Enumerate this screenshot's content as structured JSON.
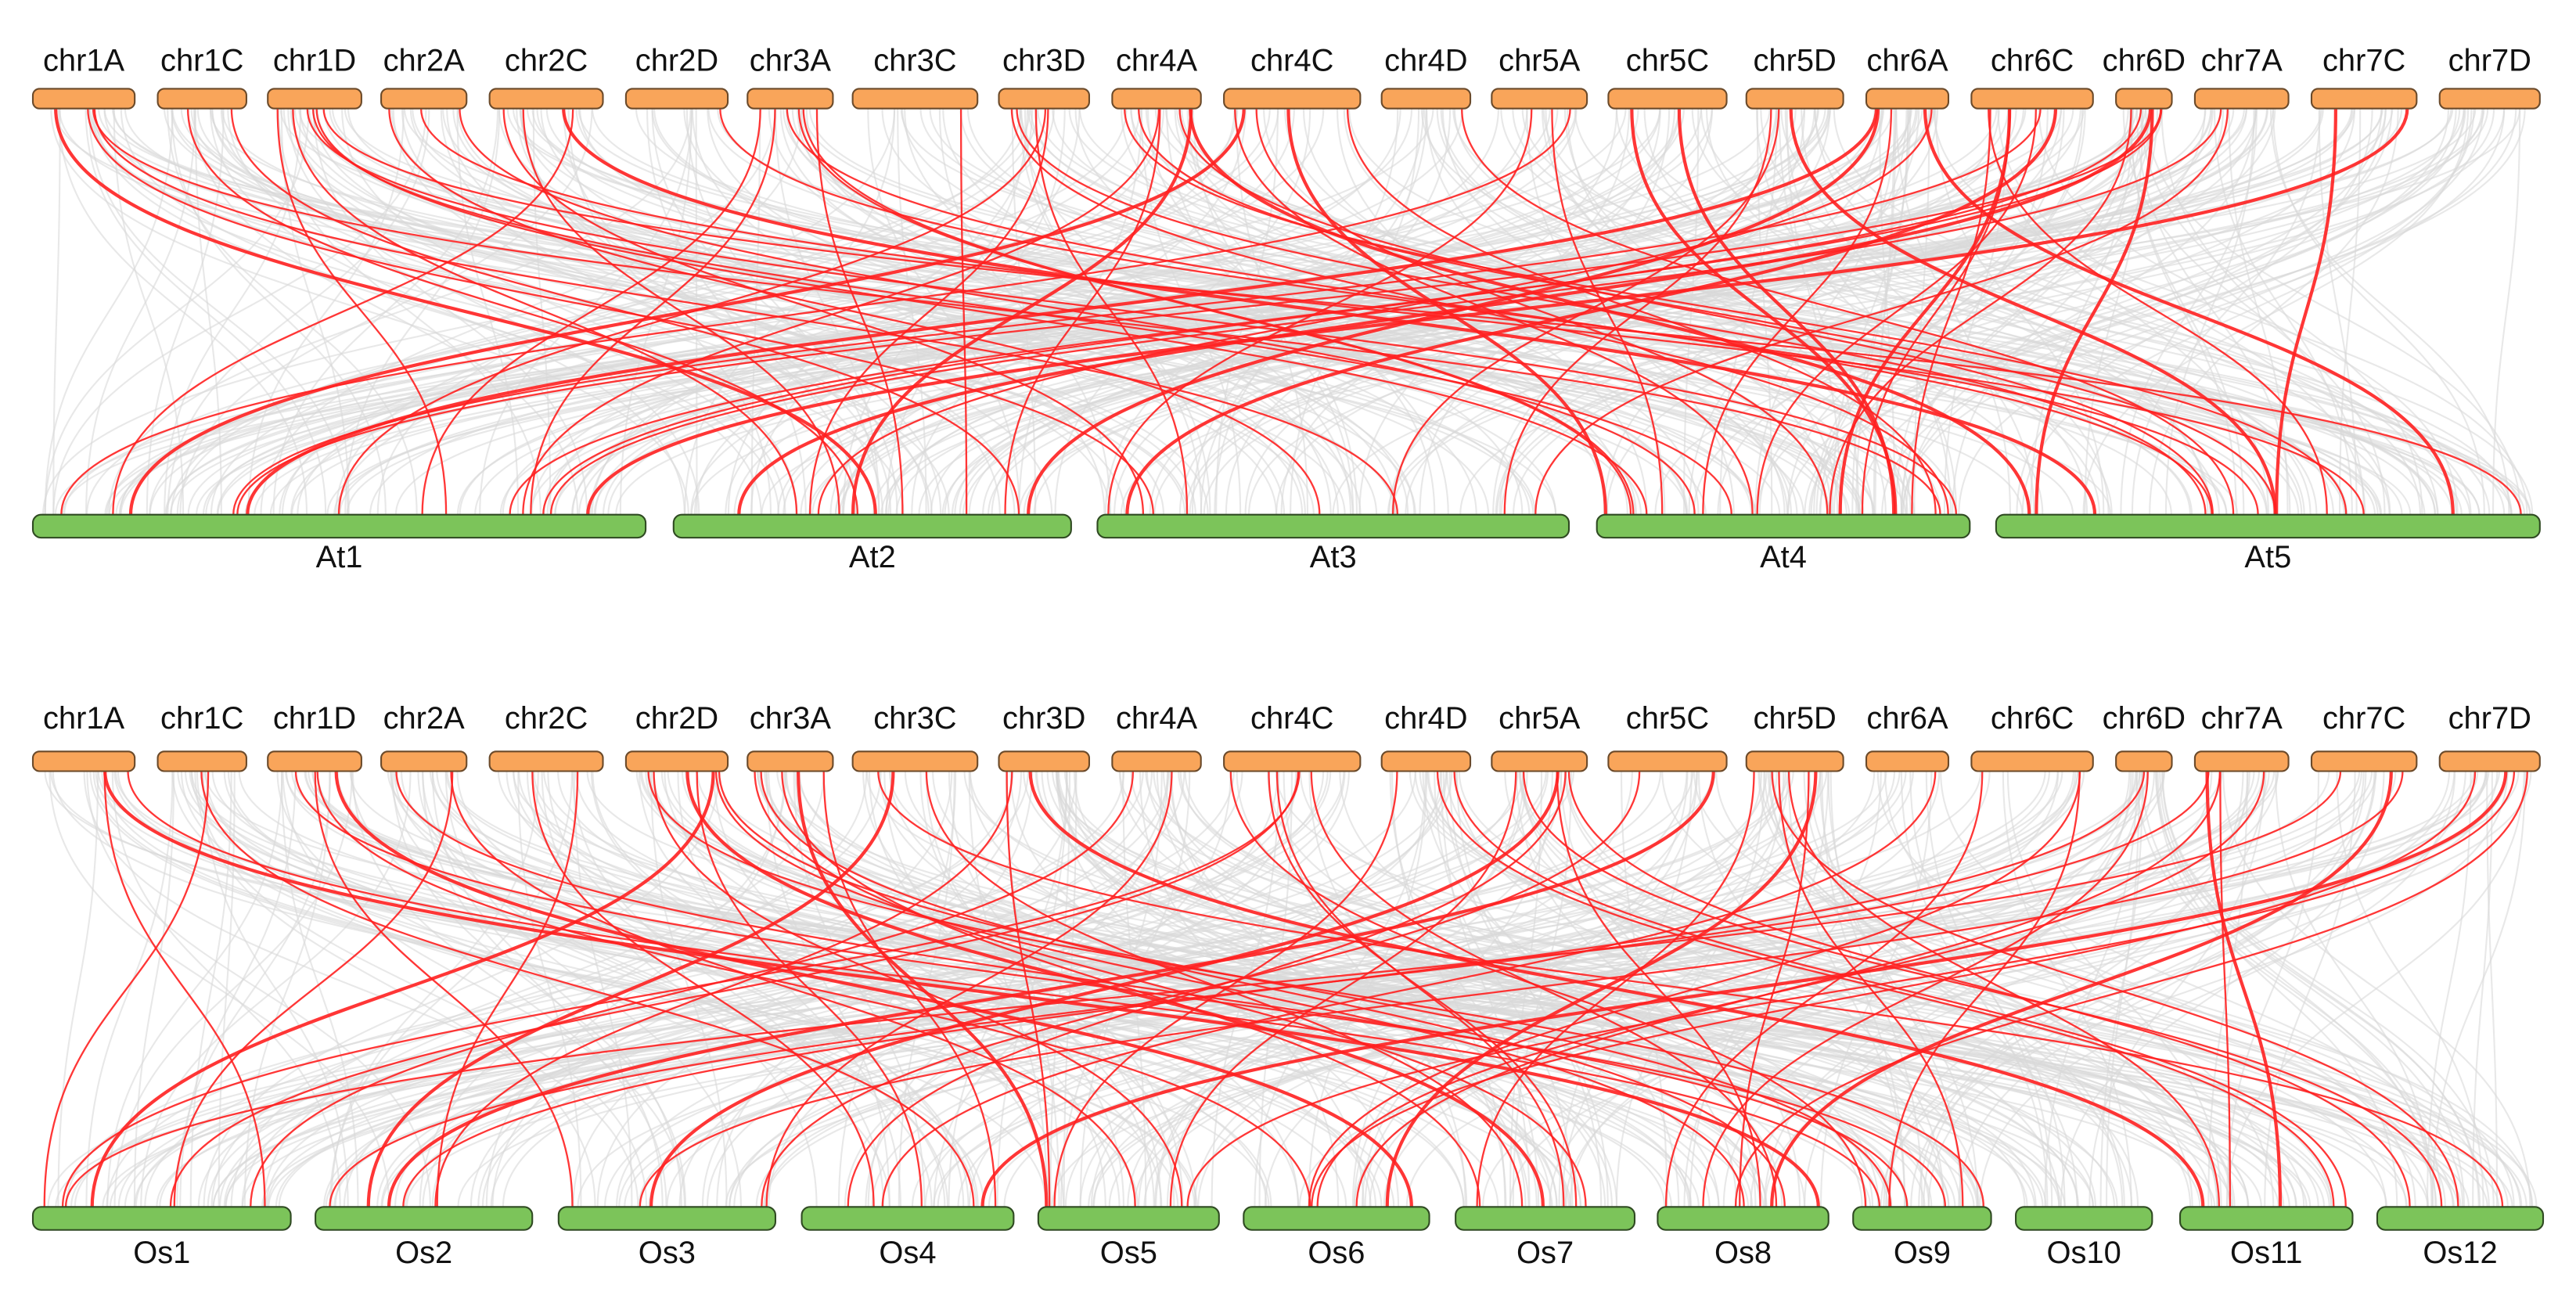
{
  "panels": [
    {
      "top_labels": [
        "chr1A",
        "chr1C",
        "chr1D",
        "chr2A",
        "chr2C",
        "chr2D",
        "chr3A",
        "chr3C",
        "chr3D",
        "chr4A",
        "chr4C",
        "chr4D",
        "chr5A",
        "chr5C",
        "chr5D",
        "chr6A",
        "chr6C",
        "chr6D",
        "chr7A",
        "chr7C",
        "chr7D"
      ],
      "bottom_labels": [
        "At1",
        "At2",
        "At3",
        "At4",
        "At5"
      ]
    },
    {
      "top_labels": [
        "chr1A",
        "chr1C",
        "chr1D",
        "chr2A",
        "chr2C",
        "chr2D",
        "chr3A",
        "chr3C",
        "chr3D",
        "chr4A",
        "chr4C",
        "chr4D",
        "chr5A",
        "chr5C",
        "chr5D",
        "chr6A",
        "chr6C",
        "chr6D",
        "chr7A",
        "chr7C",
        "chr7D"
      ],
      "bottom_labels": [
        "Os1",
        "Os2",
        "Os3",
        "Os4",
        "Os5",
        "Os6",
        "Os7",
        "Os8",
        "Os9",
        "Os10",
        "Os11",
        "Os12"
      ]
    }
  ]
}
